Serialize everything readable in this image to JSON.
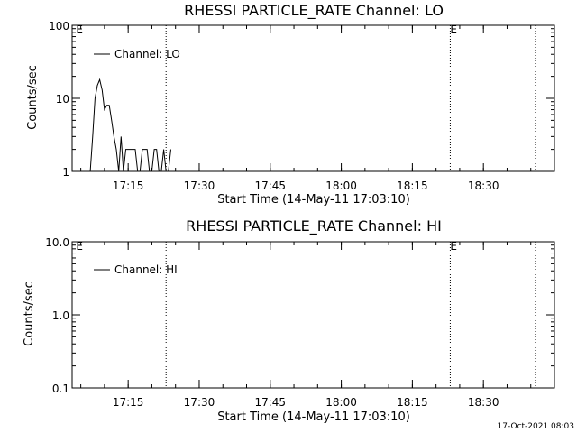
{
  "footer_timestamp": "17-Oct-2021 08:03",
  "chart_data": [
    {
      "type": "line",
      "title": "RHESSI PARTICLE_RATE Channel: LO",
      "xlabel": "Start Time (14-May-11 17:03:10)",
      "ylabel": "Counts/sec",
      "y_scale": "log",
      "ylim": [
        1,
        100
      ],
      "y_ticks": [
        "1",
        "10",
        "100"
      ],
      "x_ticks": [
        "17:15",
        "17:30",
        "17:45",
        "18:00",
        "18:15",
        "18:30"
      ],
      "legend": "Channel: LO",
      "legend_position": "top-left",
      "markers": [
        {
          "label": "E",
          "time": "17:04"
        },
        {
          "label": "E",
          "time": "18:23"
        }
      ],
      "dotted_lines": [
        "17:23",
        "18:23",
        "18:41"
      ],
      "series": [
        {
          "name": "Channel: LO",
          "x": [
            "17:07",
            "17:07:30",
            "17:08",
            "17:08:30",
            "17:09",
            "17:09:30",
            "17:10",
            "17:10:30",
            "17:11",
            "17:11:30",
            "17:12",
            "17:12:30",
            "17:13",
            "17:13:30",
            "17:14",
            "17:14:30",
            "17:15",
            "17:15:30",
            "17:16",
            "17:16:30",
            "17:17",
            "17:17:30",
            "17:18",
            "17:18:30",
            "17:19",
            "17:19:30",
            "17:20",
            "17:20:30",
            "17:21",
            "17:21:30",
            "17:22",
            "17:22:30",
            "17:23",
            "17:23:30",
            "17:24"
          ],
          "y": [
            1,
            3,
            10,
            15,
            18,
            13,
            7,
            8,
            8,
            5,
            3,
            2,
            1,
            3,
            1,
            2,
            2,
            2,
            2,
            2,
            1,
            1,
            2,
            2,
            2,
            1,
            1,
            2,
            2,
            1,
            1,
            2,
            1,
            1,
            2
          ]
        }
      ]
    },
    {
      "type": "line",
      "title": "RHESSI PARTICLE_RATE Channel: HI",
      "xlabel": "Start Time (14-May-11 17:03:10)",
      "ylabel": "Counts/sec",
      "y_scale": "log",
      "ylim": [
        0.1,
        10
      ],
      "y_ticks": [
        "0.1",
        "1.0",
        "10.0"
      ],
      "x_ticks": [
        "17:15",
        "17:30",
        "17:45",
        "18:00",
        "18:15",
        "18:30"
      ],
      "legend": "Channel: HI",
      "legend_position": "top-left",
      "markers": [
        {
          "label": "E",
          "time": "17:04"
        },
        {
          "label": "E",
          "time": "18:23"
        }
      ],
      "dotted_lines": [
        "17:23",
        "18:23",
        "18:41"
      ],
      "series": [
        {
          "name": "Channel: HI",
          "x": [],
          "y": []
        }
      ]
    }
  ]
}
